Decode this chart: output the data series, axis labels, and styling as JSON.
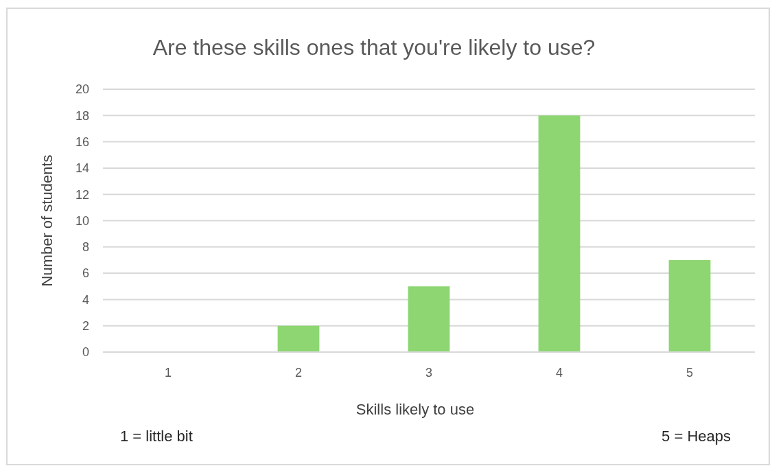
{
  "chart_data": {
    "type": "bar",
    "title": "Are these skills ones that you're likely to use?",
    "xlabel": "Skills likely to use",
    "ylabel": "Number of students",
    "categories": [
      "1",
      "2",
      "3",
      "4",
      "5"
    ],
    "values": [
      0,
      2,
      5,
      18,
      7
    ],
    "color": "#8dd672",
    "ylim": [
      0,
      20
    ],
    "yticks": [
      0,
      2,
      4,
      6,
      8,
      10,
      12,
      14,
      16,
      18,
      20
    ],
    "grid": "y",
    "annotations": [
      "1 = little bit",
      "5 = Heaps"
    ]
  }
}
